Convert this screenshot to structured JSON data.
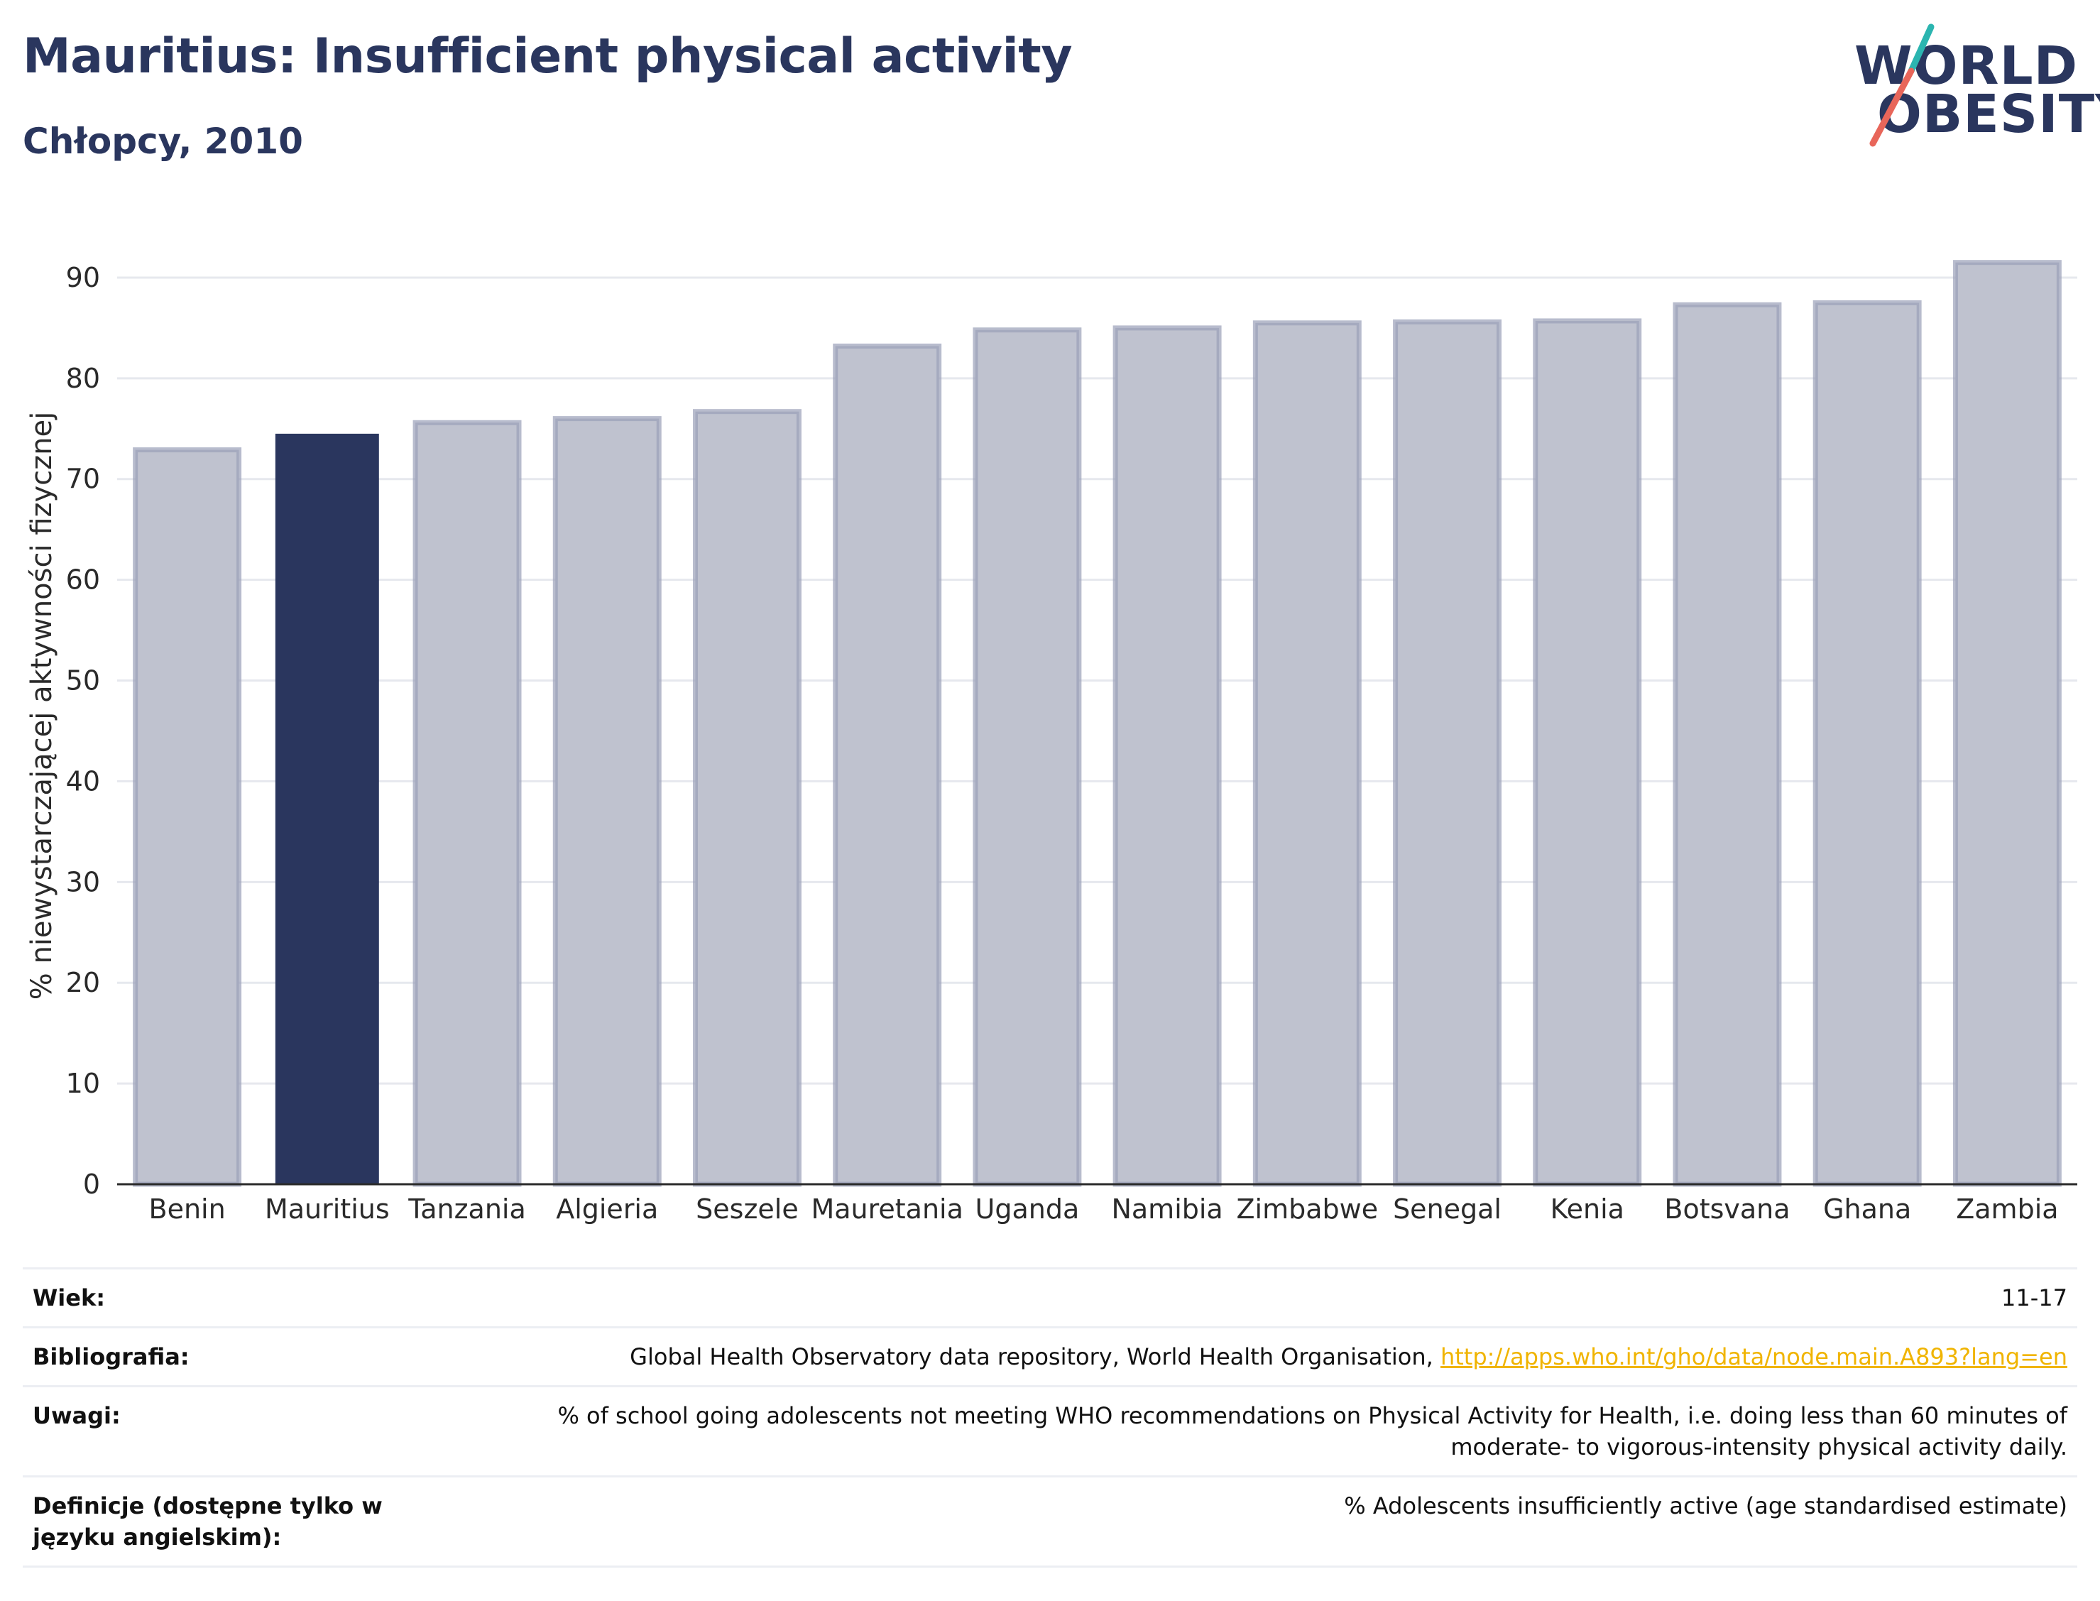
{
  "header": {
    "title": "Mauritius: Insufficient physical activity",
    "subtitle": "Chłopcy, 2010"
  },
  "logo": {
    "line1": "WORLD",
    "line2": "OBESITY",
    "accent_teal": "#2bb5b0",
    "accent_red": "#e8665a"
  },
  "colors": {
    "highlight": "#2a365e",
    "bar_fill": "#bfc2cf",
    "bar_stroke": "#9aa0b8",
    "grid": "#e6e8ee",
    "axis": "#2a2a2a"
  },
  "chart_data": {
    "type": "bar",
    "categories": [
      "Benin",
      "Mauritius",
      "Tanzania",
      "Algieria",
      "Seszele",
      "Mauretania",
      "Uganda",
      "Namibia",
      "Zimbabwe",
      "Senegal",
      "Kenia",
      "Botsvana",
      "Ghana",
      "Zambia"
    ],
    "values": [
      72.9,
      74.5,
      75.6,
      76.0,
      76.7,
      83.2,
      84.8,
      85.0,
      85.5,
      85.6,
      85.7,
      87.3,
      87.5,
      91.5
    ],
    "highlight_category": "Mauritius",
    "ylabel": "% niewystarczającej aktywności fizycznej",
    "yticks": [
      0,
      10,
      20,
      30,
      40,
      50,
      60,
      70,
      80,
      90
    ],
    "ylim": [
      0,
      95
    ],
    "grid": true
  },
  "meta": {
    "age_label": "Wiek:",
    "age_value": "11-17",
    "bib_label": "Bibliografia:",
    "bib_text": "Global Health Observatory data repository, World Health Organisation, ",
    "bib_link": "http://apps.who.int/gho/data/node.main.A893?lang=en",
    "notes_label": "Uwagi:",
    "notes_value": "% of school going adolescents not meeting WHO recommendations on Physical Activity for Health, i.e. doing less than 60 minutes of moderate- to vigorous-intensity physical activity daily.",
    "def_label": "Definicje (dostępne tylko w języku angielskim):",
    "def_value": "% Adolescents insufficiently active (age standardised estimate)"
  }
}
